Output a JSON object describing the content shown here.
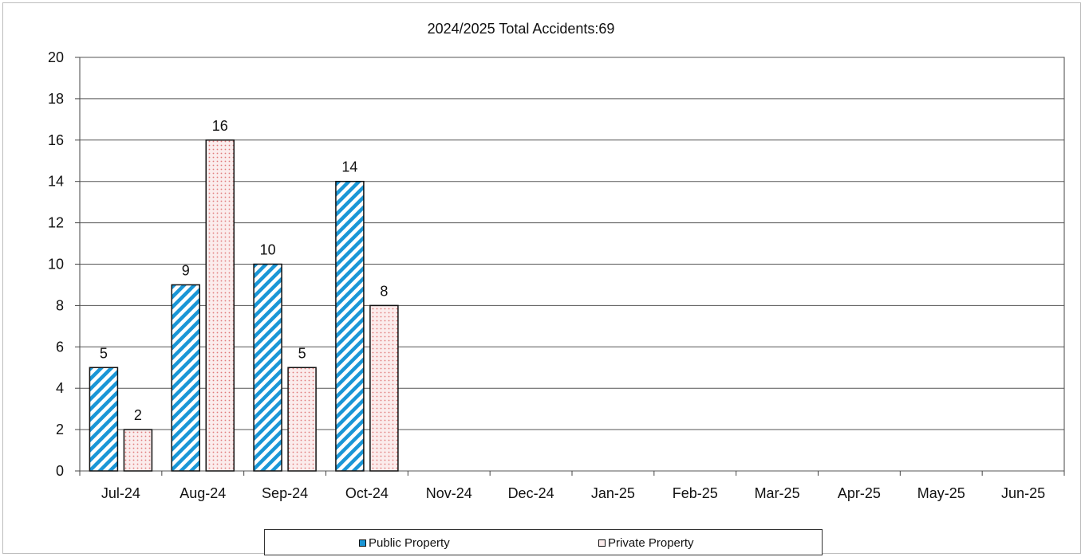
{
  "chart_data": {
    "type": "bar",
    "title": "2024/2025 Total Accidents:69",
    "xlabel": "",
    "ylabel": "",
    "categories": [
      "Jul-24",
      "Aug-24",
      "Sep-24",
      "Oct-24",
      "Nov-24",
      "Dec-24",
      "Jan-25",
      "Feb-25",
      "Mar-25",
      "Apr-25",
      "May-25",
      "Jun-25"
    ],
    "series": [
      {
        "name": "Public Property",
        "values": [
          5,
          9,
          10,
          14,
          null,
          null,
          null,
          null,
          null,
          null,
          null,
          null
        ],
        "color": "#1a96d6",
        "pattern": "diagonal-stripes"
      },
      {
        "name": "Private Property",
        "values": [
          2,
          16,
          5,
          8,
          null,
          null,
          null,
          null,
          null,
          null,
          null,
          null
        ],
        "color": "#e88a8a",
        "pattern": "dots"
      }
    ],
    "ylim": [
      0,
      20
    ],
    "yticks": [
      0,
      2,
      4,
      6,
      8,
      10,
      12,
      14,
      16,
      18,
      20
    ],
    "grid": true,
    "legend_position": "bottom-center",
    "data_labels": true
  }
}
